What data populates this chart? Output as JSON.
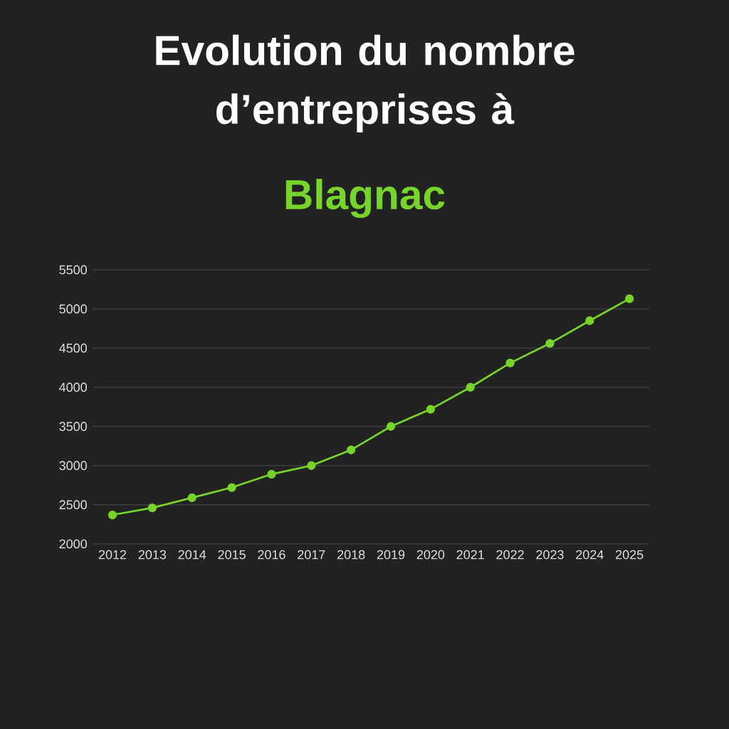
{
  "chart_data": {
    "type": "line",
    "title": "Evolution du nombre d’entreprises à",
    "subtitle": "Blagnac",
    "categories": [
      "2012",
      "2013",
      "2014",
      "2015",
      "2016",
      "2017",
      "2018",
      "2019",
      "2020",
      "2021",
      "2022",
      "2023",
      "2024",
      "2025"
    ],
    "series": [
      {
        "color": "#77d42a",
        "values": [
          2370,
          2460,
          2590,
          2720,
          2890,
          3000,
          3200,
          3500,
          3720,
          4000,
          4310,
          4560,
          4850,
          5130
        ]
      }
    ],
    "ylim": [
      2000,
      5500
    ],
    "yticks": [
      2000,
      2500,
      3000,
      3500,
      4000,
      4500,
      5000,
      5500
    ],
    "grid": "y",
    "marker": "circle",
    "line_style": "solid"
  }
}
